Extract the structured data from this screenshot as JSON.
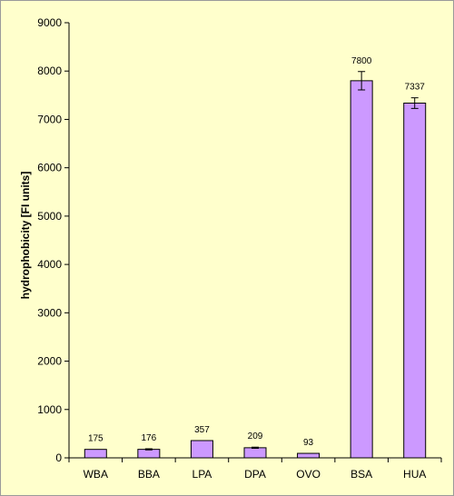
{
  "chart_data": {
    "type": "bar",
    "categories": [
      "WBA",
      "BBA",
      "LPA",
      "DPA",
      "OVO",
      "BSA",
      "HUA"
    ],
    "values": [
      175,
      176,
      357,
      209,
      93,
      7800,
      7337
    ],
    "data_labels": [
      "175",
      "176",
      "357",
      "209",
      "93",
      "7800",
      "7337"
    ],
    "error": [
      0,
      12,
      0,
      12,
      0,
      190,
      110
    ],
    "title": "",
    "xlabel": "",
    "ylabel": "hydrophobicity [FI units]",
    "ylim": [
      0,
      9000
    ],
    "yticks": [
      0,
      1000,
      2000,
      3000,
      4000,
      5000,
      6000,
      7000,
      8000,
      9000
    ],
    "ytick_labels": [
      "0",
      "1000",
      "2000",
      "3000",
      "4000",
      "5000",
      "6000",
      "7000",
      "8000",
      "9000"
    ],
    "grid": false,
    "legend": "none",
    "colors": {
      "bar_fill": "#cc99ff",
      "bar_stroke": "#000000",
      "background": "#ffffcc"
    }
  }
}
